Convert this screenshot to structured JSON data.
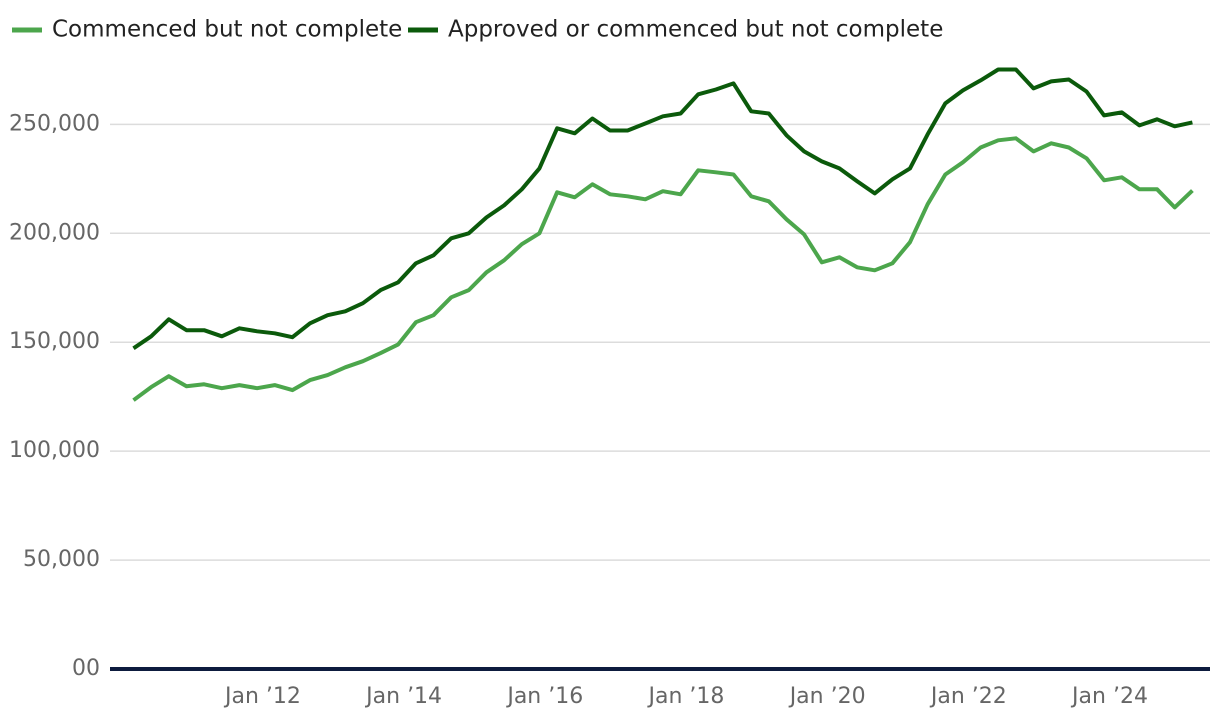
{
  "chart_data": {
    "type": "line",
    "x": [
      "2010-03",
      "2010-06",
      "2010-09",
      "2010-12",
      "2011-03",
      "2011-06",
      "2011-09",
      "2011-12",
      "2012-03",
      "2012-06",
      "2012-09",
      "2012-12",
      "2013-03",
      "2013-06",
      "2013-09",
      "2013-12",
      "2014-03",
      "2014-06",
      "2014-09",
      "2014-12",
      "2015-03",
      "2015-06",
      "2015-09",
      "2015-12",
      "2016-03",
      "2016-06",
      "2016-09",
      "2016-12",
      "2017-03",
      "2017-06",
      "2017-09",
      "2017-12",
      "2018-03",
      "2018-06",
      "2018-09",
      "2018-12",
      "2019-03",
      "2019-06",
      "2019-09",
      "2019-12",
      "2020-03",
      "2020-06",
      "2020-09",
      "2020-12",
      "2021-03",
      "2021-06",
      "2021-09",
      "2021-12",
      "2022-03",
      "2022-06",
      "2022-09",
      "2022-12",
      "2023-03",
      "2023-06",
      "2023-09",
      "2023-12",
      "2024-03",
      "2024-06",
      "2024-09",
      "2024-12",
      "2025-03"
    ],
    "series": [
      {
        "name": "Commenced but not complete",
        "color": "#4ca64c",
        "values": [
          123400,
          129400,
          134400,
          129800,
          130700,
          128900,
          130300,
          128900,
          130300,
          128000,
          132600,
          134900,
          138500,
          141300,
          145000,
          149000,
          159200,
          162400,
          170600,
          173900,
          182100,
          187600,
          195000,
          200000,
          218800,
          216500,
          222500,
          217900,
          217000,
          215600,
          219300,
          217900,
          228900,
          228000,
          227000,
          217000,
          214700,
          206400,
          199500,
          186700,
          189000,
          184400,
          183000,
          186200,
          195900,
          213300,
          227000,
          232600,
          239400,
          242700,
          243600,
          237600,
          241300,
          239400,
          234400,
          224300,
          225700,
          220200,
          220200,
          211900,
          219600
        ]
      },
      {
        "name": "Approved or commenced but not complete",
        "color": "#0b5a0b",
        "values": [
          147200,
          152700,
          160500,
          155500,
          155500,
          152700,
          156400,
          155000,
          154100,
          152300,
          158700,
          162400,
          164200,
          167900,
          173900,
          177500,
          186200,
          189900,
          197700,
          200000,
          207300,
          212800,
          220200,
          229800,
          248200,
          245900,
          252700,
          247200,
          247200,
          250400,
          253700,
          255000,
          263800,
          266000,
          268800,
          256000,
          255000,
          245000,
          237600,
          233000,
          229800,
          223900,
          218300,
          224800,
          229800,
          245400,
          259600,
          265600,
          270200,
          275200,
          275200,
          266500,
          269700,
          270600,
          265100,
          254100,
          255500,
          249500,
          252300,
          249100,
          250900
        ]
      }
    ],
    "xlim": [
      "2009-11",
      "2025-06"
    ],
    "xticks": [
      {
        "value": "2012-01",
        "label": "Jan ’12"
      },
      {
        "value": "2014-01",
        "label": "Jan ’14"
      },
      {
        "value": "2016-01",
        "label": "Jan ’16"
      },
      {
        "value": "2018-01",
        "label": "Jan ’18"
      },
      {
        "value": "2020-01",
        "label": "Jan ’20"
      },
      {
        "value": "2022-01",
        "label": "Jan ’22"
      },
      {
        "value": "2024-01",
        "label": "Jan ’24"
      }
    ],
    "ylim": [
      0,
      280000
    ],
    "yticks": [
      {
        "value": 0,
        "label": "00"
      },
      {
        "value": 50000,
        "label": "50,000"
      },
      {
        "value": 100000,
        "label": "100,000"
      },
      {
        "value": 150000,
        "label": "150,000"
      },
      {
        "value": 200000,
        "label": "200,000"
      },
      {
        "value": 250000,
        "label": "250,000"
      }
    ],
    "grid": true
  }
}
